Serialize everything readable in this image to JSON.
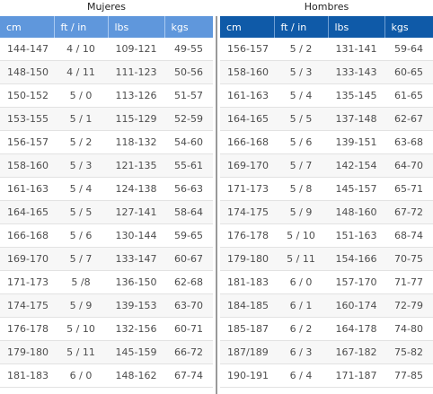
{
  "women": {
    "title": "Mujeres",
    "headers": [
      "cm",
      "ft / in",
      "lbs",
      "kgs"
    ],
    "rows": [
      [
        "144-147",
        "4 / 10",
        "109-121",
        "49-55"
      ],
      [
        "148-150",
        "4 / 11",
        "111-123",
        "50-56"
      ],
      [
        "150-152",
        "5 / 0",
        "113-126",
        "51-57"
      ],
      [
        "153-155",
        "5 / 1",
        "115-129",
        "52-59"
      ],
      [
        "156-157",
        "5 / 2",
        "118-132",
        "54-60"
      ],
      [
        "158-160",
        "5 / 3",
        "121-135",
        "55-61"
      ],
      [
        "161-163",
        "5 / 4",
        "124-138",
        "56-63"
      ],
      [
        "164-165",
        "5 / 5",
        "127-141",
        "58-64"
      ],
      [
        "166-168",
        "5 / 6",
        "130-144",
        "59-65"
      ],
      [
        "169-170",
        "5 / 7",
        "133-147",
        "60-67"
      ],
      [
        "171-173",
        "5 /8",
        "136-150",
        "62-68"
      ],
      [
        "174-175",
        "5 / 9",
        "139-153",
        "63-70"
      ],
      [
        "176-178",
        "5 / 10",
        "132-156",
        "60-71"
      ],
      [
        "179-180",
        "5 / 11",
        "145-159",
        "66-72"
      ],
      [
        "181-183",
        "6 / 0",
        "148-162",
        "67-74"
      ]
    ],
    "header_color": "#5f97dc"
  },
  "men": {
    "title": "Hombres",
    "headers": [
      "cm",
      "ft / in",
      "lbs",
      "kgs"
    ],
    "rows": [
      [
        "156-157",
        "5 / 2",
        "131-141",
        "59-64"
      ],
      [
        "158-160",
        "5 / 3",
        "133-143",
        "60-65"
      ],
      [
        "161-163",
        "5 / 4",
        "135-145",
        "61-65"
      ],
      [
        "164-165",
        "5 / 5",
        "137-148",
        "62-67"
      ],
      [
        "166-168",
        "5 / 6",
        "139-151",
        "63-68"
      ],
      [
        "169-170",
        "5 / 7",
        "142-154",
        "64-70"
      ],
      [
        "171-173",
        "5 / 8",
        "145-157",
        "65-71"
      ],
      [
        "174-175",
        "5 / 9",
        "148-160",
        "67-72"
      ],
      [
        "176-178",
        "5 / 10",
        "151-163",
        "68-74"
      ],
      [
        "179-180",
        "5 / 11",
        "154-166",
        "70-75"
      ],
      [
        "181-183",
        "6 / 0",
        "157-170",
        "71-77"
      ],
      [
        "184-185",
        "6 / 1",
        "160-174",
        "72-79"
      ],
      [
        "185-187",
        "6 / 2",
        "164-178",
        "74-80"
      ],
      [
        "187/189",
        "6 / 3",
        "167-182",
        "75-82"
      ],
      [
        "190-191",
        "6 / 4",
        "171-187",
        "77-85"
      ]
    ],
    "header_color": "#0f5aa8"
  }
}
